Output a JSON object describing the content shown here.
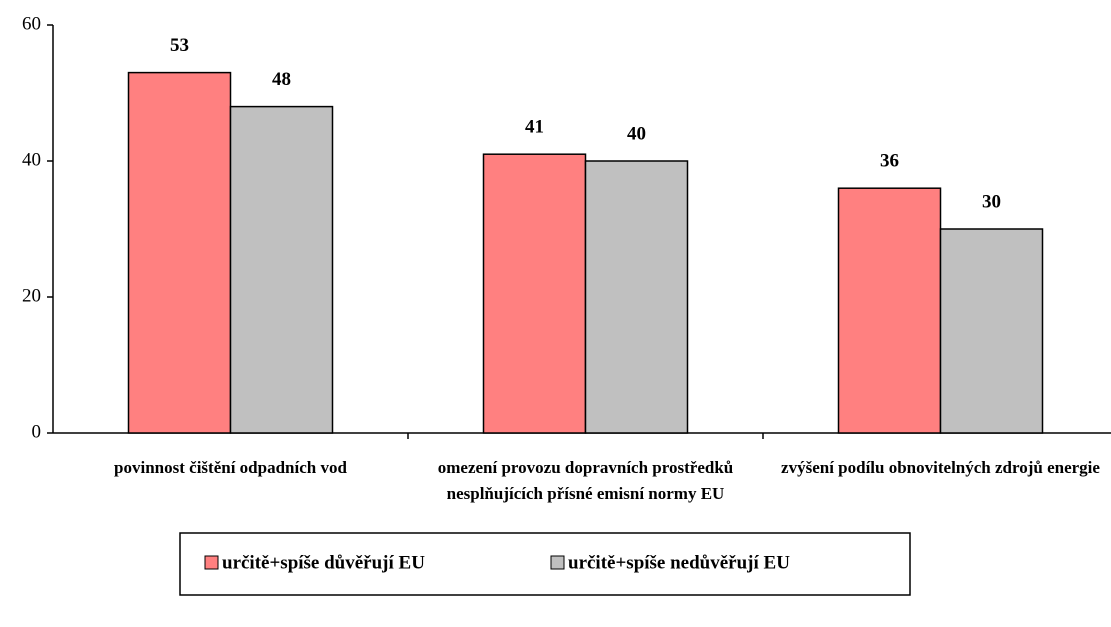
{
  "chart_data": {
    "type": "bar",
    "categories": [
      "povinnost čištění odpadních vod",
      "omezení provozu dopravních prostředků nesplňujících přísné emisní normy EU",
      "zvýšení podílu obnovitelných zdrojů energie"
    ],
    "series": [
      {
        "name": "určitě+spíše důvěřují EU",
        "color": "#ff8080",
        "values": [
          53,
          41,
          36
        ]
      },
      {
        "name": "určitě+spíše nedůvěřují EU",
        "color": "#c0c0c0",
        "values": [
          48,
          40,
          30
        ]
      }
    ],
    "ylim": [
      0,
      60
    ],
    "yticks": [
      0,
      20,
      40,
      60
    ],
    "grid": false,
    "legend": "bottom"
  }
}
